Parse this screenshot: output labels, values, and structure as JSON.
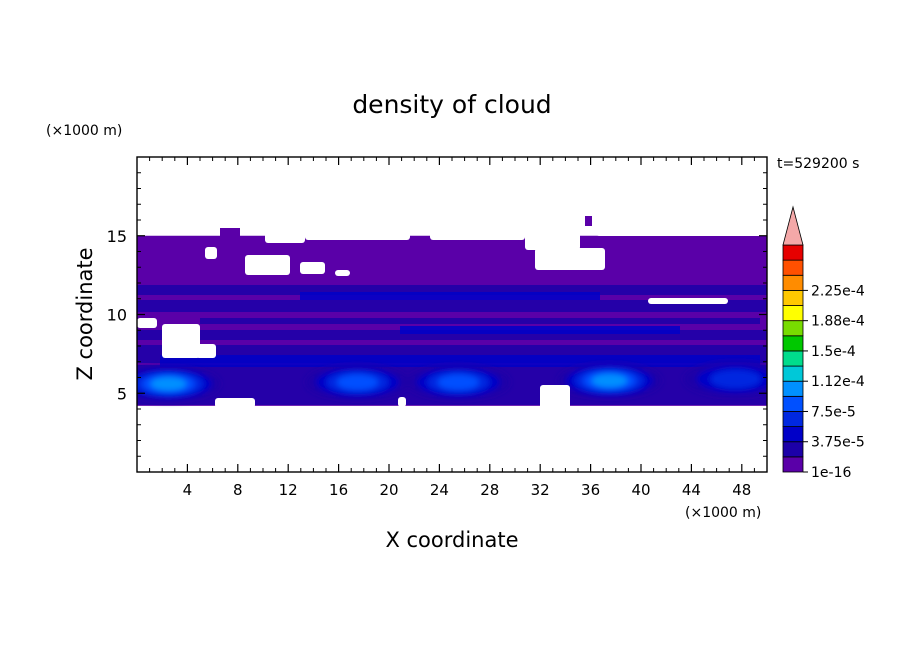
{
  "chart_data": {
    "type": "heatmap",
    "title": "density of cloud",
    "time_label": "t=529200 s",
    "xlabel": "X coordinate",
    "ylabel": "Z coordinate",
    "x_unit": "(×1000 m)",
    "y_unit": "(×1000 m)",
    "xlim": [
      0,
      50
    ],
    "ylim": [
      0,
      20
    ],
    "x_ticks": [
      "4",
      "8",
      "12",
      "16",
      "20",
      "24",
      "28",
      "32",
      "36",
      "40",
      "44",
      "48"
    ],
    "y_ticks": [
      "5",
      "10",
      "15"
    ],
    "colorbar": {
      "labels": [
        "1e-16",
        "3.75e-5",
        "7.5e-5",
        "1.12e-4",
        "1.5e-4",
        "1.88e-4",
        "2.25e-4"
      ],
      "colors": [
        "#5a00a8",
        "#1c00a8",
        "#0000c8",
        "#0028e0",
        "#0050ff",
        "#0090ff",
        "#00c8d8",
        "#00dc8c",
        "#00c800",
        "#78dc00",
        "#ffff00",
        "#ffc800",
        "#ff8c00",
        "#ff5000",
        "#e60000"
      ],
      "extend_color": "#f4a8a8"
    },
    "cloud_layer": {
      "base_km": 4.2,
      "top_km": 15,
      "background_color": "#5a00a8"
    },
    "cores": [
      {
        "x_center_km": 2.5,
        "z_km": 5.6,
        "peak": 0.000112
      },
      {
        "x_center_km": 17.5,
        "z_km": 5.7,
        "peak": 7.5e-05
      },
      {
        "x_center_km": 25.5,
        "z_km": 5.7,
        "peak": 7.5e-05
      },
      {
        "x_center_km": 37.5,
        "z_km": 5.8,
        "peak": 0.000112
      },
      {
        "x_center_km": 47.5,
        "z_km": 5.9,
        "peak": 3.75e-05
      }
    ]
  }
}
